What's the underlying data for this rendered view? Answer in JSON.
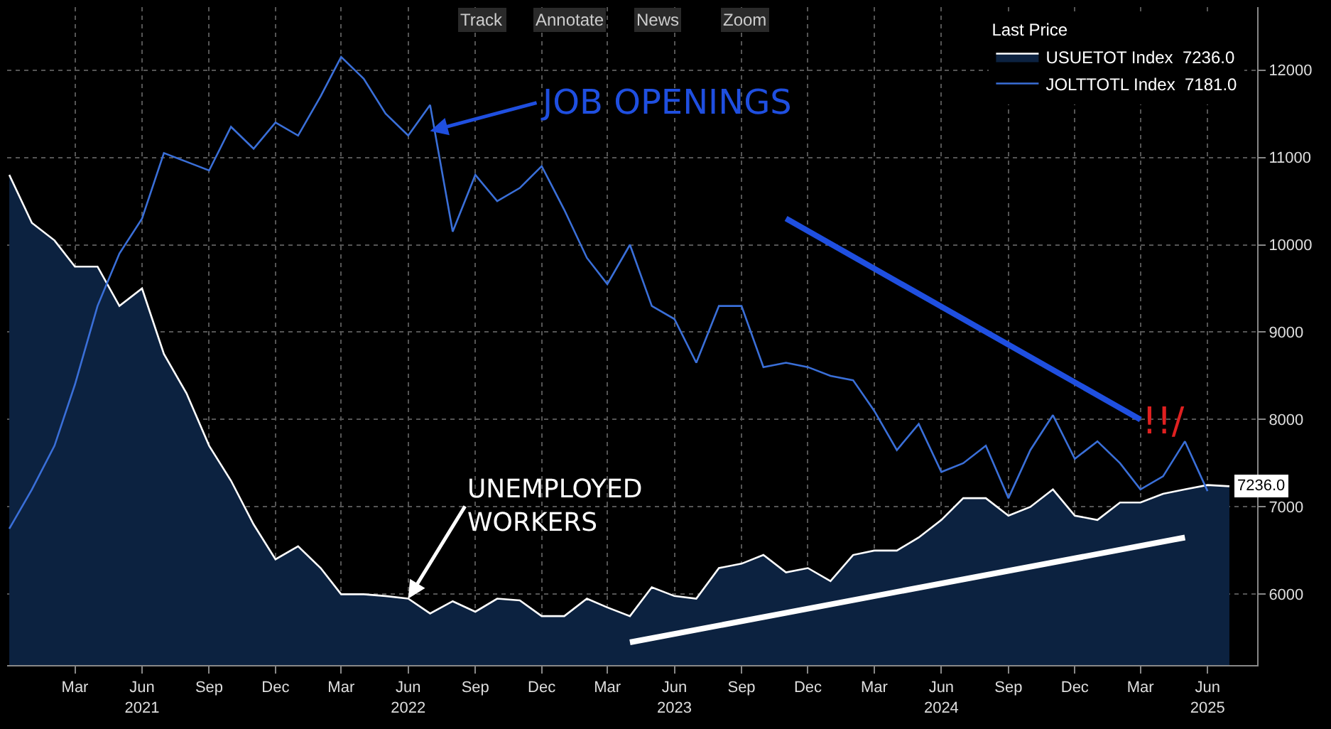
{
  "chart_data": {
    "type": "line",
    "x": [
      "2020-12",
      "2021-01",
      "2021-02",
      "2021-03",
      "2021-04",
      "2021-05",
      "2021-06",
      "2021-07",
      "2021-08",
      "2021-09",
      "2021-10",
      "2021-11",
      "2021-12",
      "2022-01",
      "2022-02",
      "2022-03",
      "2022-04",
      "2022-05",
      "2022-06",
      "2022-07",
      "2022-08",
      "2022-09",
      "2022-10",
      "2022-11",
      "2022-12",
      "2023-01",
      "2023-02",
      "2023-03",
      "2023-04",
      "2023-05",
      "2023-06",
      "2023-07",
      "2023-08",
      "2023-09",
      "2023-10",
      "2023-11",
      "2023-12",
      "2024-01",
      "2024-02",
      "2024-03",
      "2024-04",
      "2024-05",
      "2024-06",
      "2024-07",
      "2024-08",
      "2024-09",
      "2024-10",
      "2024-11",
      "2024-12",
      "2025-01",
      "2025-02",
      "2025-03",
      "2025-04",
      "2025-05",
      "2025-06",
      "2025-07"
    ],
    "legend_title": "Last Price",
    "series": [
      {
        "name": "USUETOT Index  7236.0",
        "type": "area",
        "color": "#ffffff",
        "values": [
          10800,
          10250,
          10050,
          9750,
          9750,
          9300,
          9500,
          8750,
          8300,
          7700,
          7300,
          6800,
          6400,
          6550,
          6300,
          6000,
          6000,
          5980,
          5950,
          5780,
          5920,
          5800,
          5950,
          5930,
          5750,
          5750,
          5950,
          5850,
          5750,
          6080,
          5980,
          5950,
          6300,
          6350,
          6450,
          6250,
          6300,
          6150,
          6450,
          6500,
          6500,
          6650,
          6850,
          7100,
          7100,
          6900,
          7000,
          7200,
          6900,
          6850,
          7050,
          7050,
          7150,
          7200,
          7250,
          7236
        ],
        "value_labels": [
          null,
          null,
          null,
          null,
          null,
          null,
          null,
          null,
          null,
          null,
          null,
          null,
          null,
          null,
          null,
          null,
          null,
          null,
          null,
          null,
          null,
          null,
          null,
          null,
          null,
          null,
          null,
          null,
          null,
          null,
          null,
          null,
          null,
          null,
          null,
          null,
          null,
          null,
          null,
          null,
          null,
          null,
          null,
          null,
          null,
          null,
          null,
          null,
          null,
          null,
          null,
          null,
          null,
          null,
          null,
          "7236.0"
        ]
      },
      {
        "name": "JOLTTOTL Index  7181.0",
        "color": "#3a6fd8",
        "values": [
          6750,
          7200,
          7700,
          8400,
          9300,
          9900,
          10300,
          11050,
          10950,
          10850,
          11350,
          11100,
          11400,
          11250,
          11700,
          12150,
          11900,
          11500,
          11250,
          11600,
          10150,
          10800,
          10500,
          10650,
          10900,
          10400,
          9850,
          9550,
          10000,
          9300,
          9150,
          8650,
          9300,
          9300,
          8600,
          8650,
          8600,
          8500,
          8450,
          8100,
          7650,
          7950,
          7400,
          7500,
          7700,
          7100,
          7650,
          8050,
          7550,
          7750,
          7500,
          7200,
          7350,
          7750,
          7181,
          null
        ]
      },
      {
        "color": "#1f4fe0",
        "x": [
          "2023-11",
          "2025-03"
        ],
        "values": [
          10300,
          8000
        ]
      },
      {
        "color": "#ffffff",
        "x": [
          "2023-04",
          "2025-05"
        ],
        "values": [
          5450,
          6650
        ]
      }
    ],
    "xlim": [
      "2020-11-28",
      "2025-08-08"
    ],
    "xticks": [
      {
        "value": "2021-03-01",
        "label": "Mar"
      },
      {
        "value": "2021-06-01",
        "label": "Jun\n2021"
      },
      {
        "value": "2021-09-01",
        "label": "Sep"
      },
      {
        "value": "2021-12-01",
        "label": "Dec"
      },
      {
        "value": "2022-03-01",
        "label": "Mar"
      },
      {
        "value": "2022-06-01",
        "label": "Jun\n2022"
      },
      {
        "value": "2022-09-01",
        "label": "Sep"
      },
      {
        "value": "2022-12-01",
        "label": "Dec"
      },
      {
        "value": "2023-03-01",
        "label": "Mar"
      },
      {
        "value": "2023-06-01",
        "label": "Jun\n2023"
      },
      {
        "value": "2023-09-01",
        "label": "Sep"
      },
      {
        "value": "2023-12-01",
        "label": "Dec"
      },
      {
        "value": "2024-03-01",
        "label": "Mar"
      },
      {
        "value": "2024-06-01",
        "label": "Jun\n2024"
      },
      {
        "value": "2024-09-01",
        "label": "Sep"
      },
      {
        "value": "2024-12-01",
        "label": "Dec"
      },
      {
        "value": "2025-03-01",
        "label": "Mar"
      },
      {
        "value": "2025-06-01",
        "label": "Jun\n2025"
      }
    ],
    "ylim": [
      5190,
      12720
    ],
    "yticks": [
      6000,
      7000,
      8000,
      9000,
      10000,
      11000,
      12000
    ],
    "grid": true,
    "legend": "top right",
    "annotations": [
      "Track",
      "Annotate",
      "News",
      "Zoom",
      {
        "text": "JOB OPENINGS",
        "x": "2022-07",
        "y": 11300
      },
      {
        "text": "UNEMPLOYED\nWORKERS",
        "x": "2022-06",
        "y": 5950
      },
      "!!/"
    ]
  }
}
